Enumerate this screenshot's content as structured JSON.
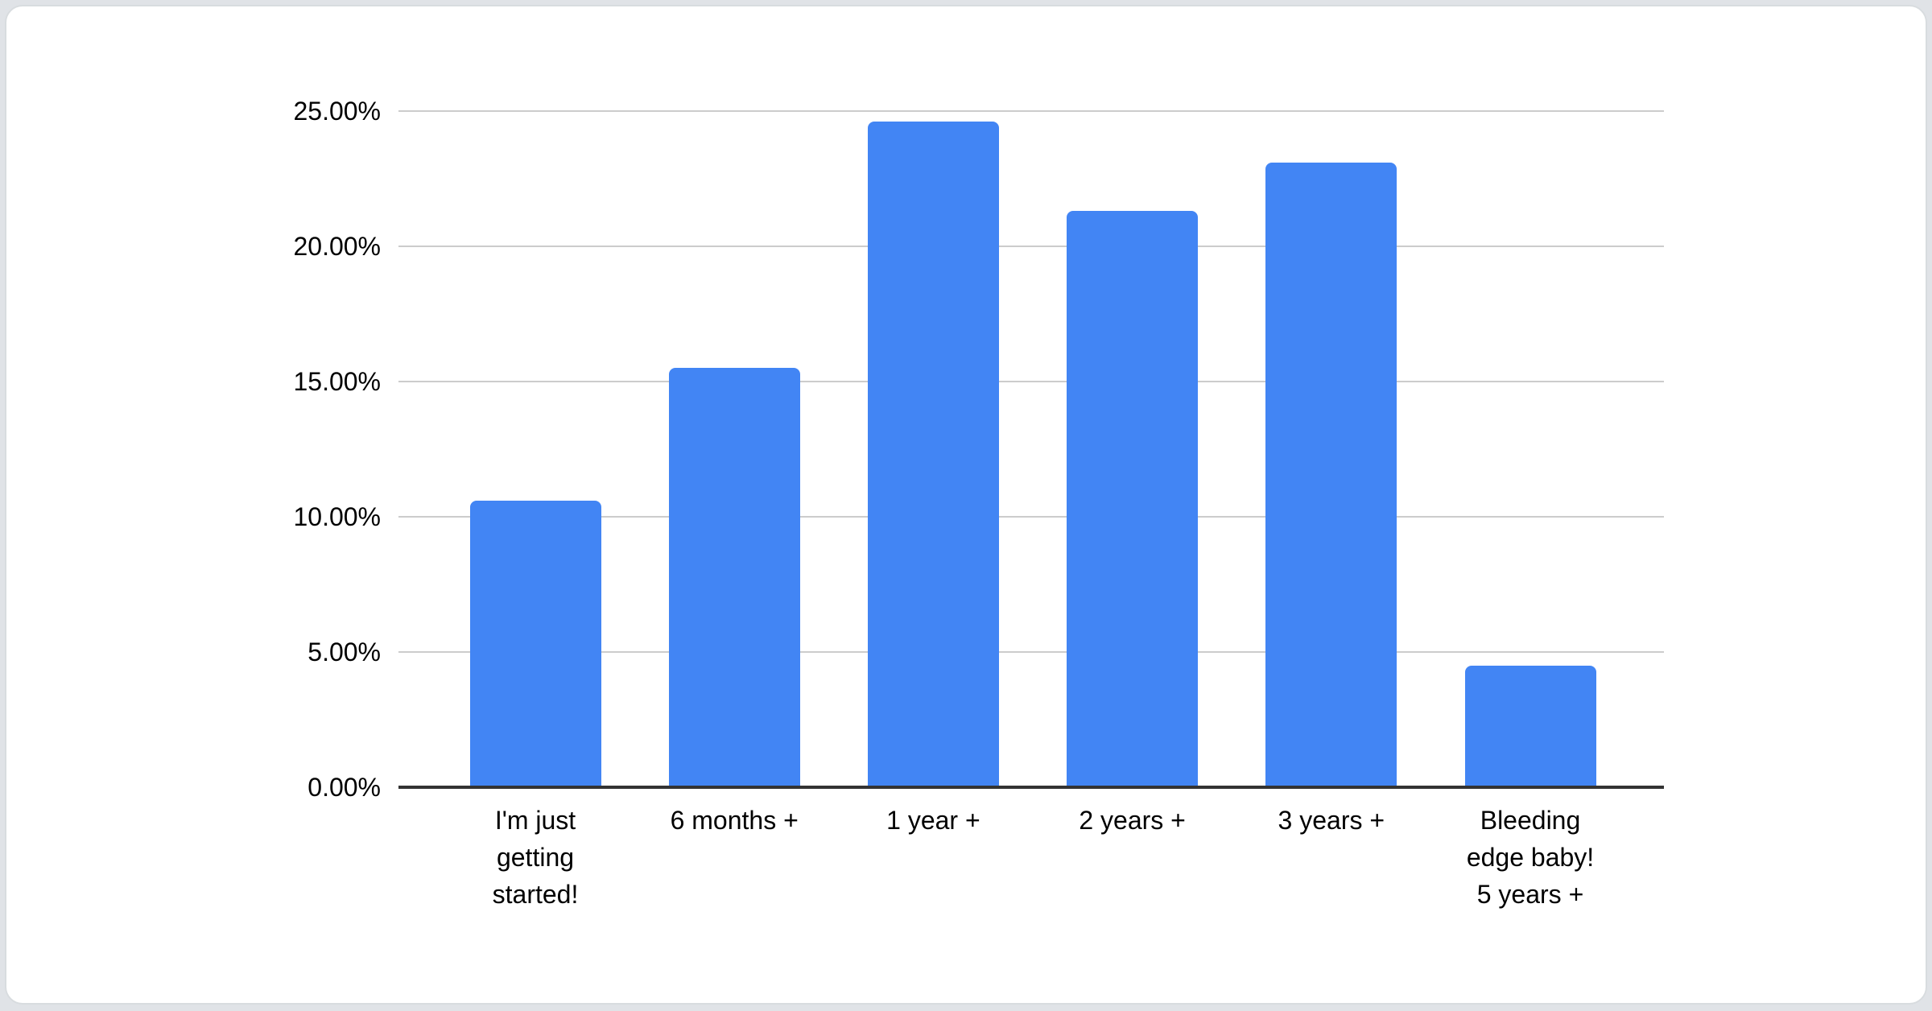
{
  "page": {
    "background_color": "#e0e3e7",
    "card_background": "#ffffff",
    "card_border_color": "#d8dcdf"
  },
  "chart_data": {
    "type": "bar",
    "title": "",
    "categories": [
      "I'm just getting started!",
      "6 months +",
      "1 year +",
      "2 years +",
      "3 years +",
      "Bleeding edge baby! 5 years +"
    ],
    "category_lines": [
      [
        "I'm just",
        "getting",
        "started!"
      ],
      [
        "6 months +"
      ],
      [
        "1 year +"
      ],
      [
        "2 years +"
      ],
      [
        "3 years +"
      ],
      [
        "Bleeding",
        "edge baby!",
        "5 years +"
      ]
    ],
    "values": [
      10.6,
      15.5,
      24.6,
      21.3,
      23.1,
      4.5
    ],
    "value_unit": "%",
    "y_ticks": [
      {
        "label": "25.00%",
        "value": 25
      },
      {
        "label": "20.00%",
        "value": 20
      },
      {
        "label": "15.00%",
        "value": 15
      },
      {
        "label": "10.00%",
        "value": 10
      },
      {
        "label": "5.00%",
        "value": 5
      },
      {
        "label": "0.00%",
        "value": 0
      }
    ],
    "ylim": [
      0,
      25
    ],
    "xlabel": "",
    "ylabel": "",
    "grid": true,
    "legend_position": "none",
    "bar_color": "#4285f4",
    "gridline_color": "#cccccc",
    "axis_line_color": "#333333",
    "label_color": "#000000"
  }
}
